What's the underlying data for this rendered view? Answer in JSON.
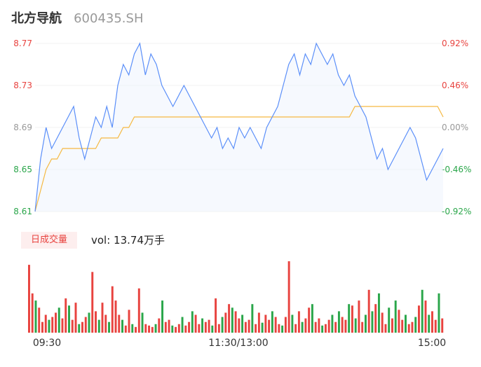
{
  "header": {
    "name": "北方导航",
    "code": "600435.SH"
  },
  "volume_panel": {
    "tag_label": "日成交量",
    "vol_text": "vol: 13.74万手"
  },
  "colors": {
    "price_line": "#5b8ff9",
    "avg_line": "#f5b942",
    "up": "#e8433f",
    "down": "#2aa64a",
    "flat_axis": "#999999"
  },
  "chart_data": [
    {
      "type": "line",
      "title": "",
      "y_left_ticks": [
        "8.77",
        "8.73",
        "8.69",
        "8.65",
        "8.61"
      ],
      "y_right_ticks": [
        "0.92%",
        "0.46%",
        "0.00%",
        "-0.46%",
        "-0.92%"
      ],
      "ylim": [
        8.61,
        8.77
      ],
      "x_tick_labels": [
        "09:30",
        "11:30/13:00",
        "15:00"
      ],
      "series": [
        {
          "values": [
            8.61,
            8.66,
            8.69,
            8.67,
            8.68,
            8.69,
            8.7,
            8.71,
            8.68,
            8.66,
            8.68,
            8.7,
            8.69,
            8.71,
            8.69,
            8.73,
            8.75,
            8.74,
            8.76,
            8.77,
            8.74,
            8.76,
            8.75,
            8.73,
            8.72,
            8.71,
            8.72,
            8.73,
            8.72,
            8.71,
            8.7,
            8.69,
            8.68,
            8.69,
            8.67,
            8.68,
            8.67,
            8.69,
            8.68,
            8.69,
            8.68,
            8.67,
            8.69,
            8.7,
            8.71,
            8.73,
            8.75,
            8.76,
            8.74,
            8.76,
            8.75,
            8.77,
            8.76,
            8.75,
            8.76,
            8.74,
            8.73,
            8.74,
            8.72,
            8.71,
            8.7,
            8.68,
            8.66,
            8.67,
            8.65,
            8.66,
            8.67,
            8.68,
            8.69,
            8.68,
            8.66,
            8.64,
            8.65,
            8.66,
            8.67
          ]
        },
        {
          "values": [
            8.61,
            8.63,
            8.65,
            8.66,
            8.66,
            8.67,
            8.67,
            8.67,
            8.67,
            8.67,
            8.67,
            8.67,
            8.68,
            8.68,
            8.68,
            8.68,
            8.69,
            8.69,
            8.7,
            8.7,
            8.7,
            8.7,
            8.7,
            8.7,
            8.7,
            8.7,
            8.7,
            8.7,
            8.7,
            8.7,
            8.7,
            8.7,
            8.7,
            8.7,
            8.7,
            8.7,
            8.7,
            8.7,
            8.7,
            8.7,
            8.7,
            8.7,
            8.7,
            8.7,
            8.7,
            8.7,
            8.7,
            8.7,
            8.7,
            8.7,
            8.7,
            8.7,
            8.7,
            8.7,
            8.7,
            8.7,
            8.7,
            8.7,
            8.71,
            8.71,
            8.71,
            8.71,
            8.71,
            8.71,
            8.71,
            8.71,
            8.71,
            8.71,
            8.71,
            8.71,
            8.71,
            8.71,
            8.71,
            8.71,
            8.7
          ]
        }
      ]
    },
    {
      "type": "bar",
      "title": "",
      "ylim": [
        0,
        100
      ],
      "values": [
        95,
        55,
        45,
        35,
        15,
        25,
        18,
        22,
        28,
        35,
        20,
        48,
        38,
        18,
        42,
        12,
        15,
        22,
        28,
        85,
        30,
        18,
        42,
        25,
        15,
        65,
        45,
        25,
        18,
        10,
        32,
        12,
        8,
        62,
        28,
        12,
        10,
        8,
        12,
        20,
        45,
        15,
        18,
        10,
        8,
        12,
        22,
        10,
        15,
        30,
        25,
        12,
        20,
        15,
        18,
        10,
        48,
        12,
        22,
        28,
        40,
        35,
        30,
        20,
        25,
        15,
        18,
        40,
        12,
        28,
        14,
        25,
        18,
        30,
        22,
        12,
        10,
        22,
        100,
        25,
        12,
        30,
        15,
        20,
        35,
        40,
        15,
        20,
        10,
        12,
        18,
        25,
        15,
        30,
        22,
        18,
        40,
        38,
        20,
        45,
        15,
        25,
        60,
        30,
        40,
        55,
        28,
        12,
        35,
        20,
        45,
        32,
        18,
        25,
        12,
        15,
        22,
        38,
        60,
        45,
        25,
        30,
        18,
        55,
        20
      ],
      "directions": [
        "u",
        "u",
        "d",
        "u",
        "u",
        "u",
        "d",
        "u",
        "u",
        "d",
        "u",
        "u",
        "d",
        "u",
        "u",
        "d",
        "u",
        "u",
        "d",
        "u",
        "u",
        "d",
        "u",
        "u",
        "d",
        "u",
        "u",
        "u",
        "d",
        "u",
        "u",
        "d",
        "u",
        "u",
        "d",
        "u",
        "u",
        "u",
        "d",
        "u",
        "d",
        "u",
        "u",
        "d",
        "u",
        "u",
        "d",
        "u",
        "u",
        "d",
        "u",
        "u",
        "d",
        "u",
        "u",
        "d",
        "u",
        "u",
        "d",
        "u",
        "u",
        "d",
        "u",
        "u",
        "d",
        "u",
        "u",
        "d",
        "u",
        "u",
        "d",
        "u",
        "u",
        "d",
        "u",
        "u",
        "d",
        "u",
        "u",
        "d",
        "u",
        "u",
        "d",
        "u",
        "u",
        "d",
        "u",
        "u",
        "d",
        "u",
        "u",
        "d",
        "u",
        "d",
        "u",
        "u",
        "d",
        "u",
        "d",
        "u",
        "u",
        "d",
        "u",
        "d",
        "u",
        "d",
        "u",
        "u",
        "d",
        "u",
        "d",
        "u",
        "u",
        "d",
        "u",
        "u",
        "d",
        "u",
        "d",
        "u",
        "d",
        "u",
        "u",
        "d",
        "u"
      ]
    }
  ]
}
